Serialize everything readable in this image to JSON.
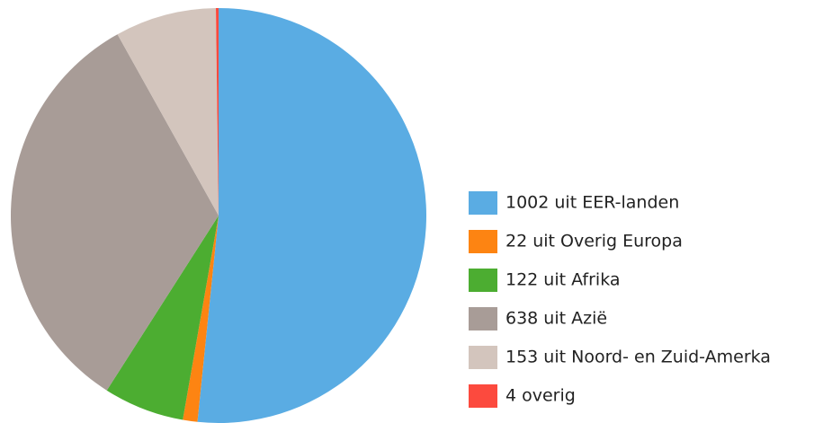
{
  "chart_data": {
    "type": "pie",
    "categories": [
      "1002 uit EER-landen",
      "22 uit Overig Europa",
      "122 uit Afrika",
      "638 uit Azië",
      "153 uit Noord- en Zuid-Amerka",
      "4 overig"
    ],
    "values": [
      1002,
      22,
      122,
      638,
      153,
      4
    ],
    "colors": [
      "#5aace3",
      "#fd8412",
      "#4cad31",
      "#a89c97",
      "#d3c5bd",
      "#fc4a3e"
    ],
    "legend": "right"
  }
}
